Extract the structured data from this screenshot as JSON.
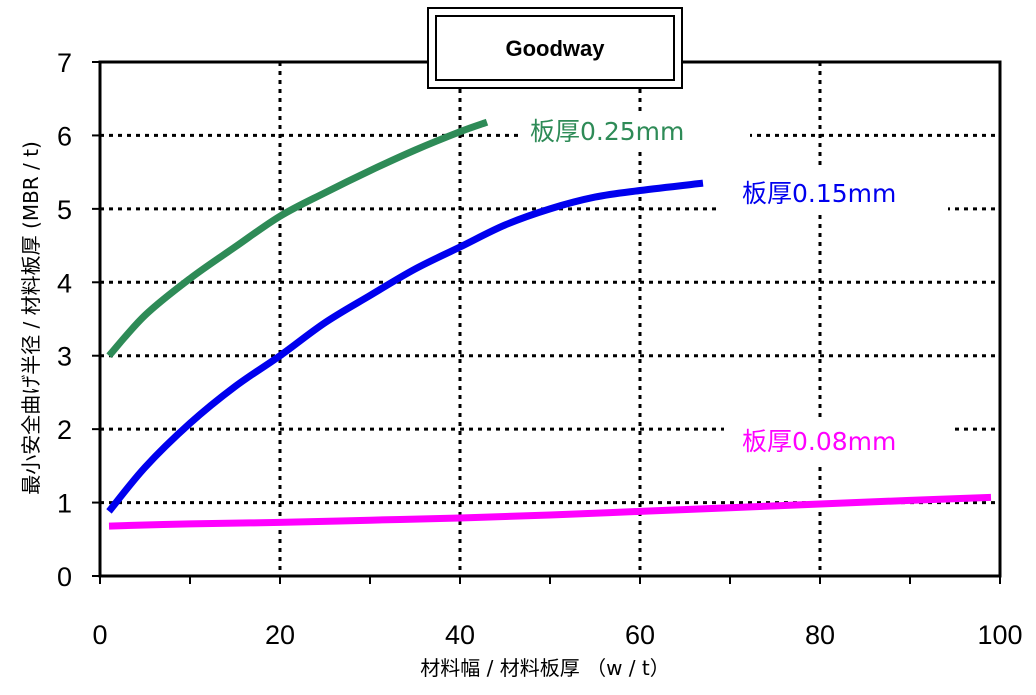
{
  "chart_data": {
    "type": "line",
    "title": "Goodway",
    "xlabel": "材料幅 / 材料板厚 （w / t）",
    "ylabel": "最小安全曲げ半径 / 材料板厚 (MBR / t)",
    "xlim": [
      0,
      100
    ],
    "ylim": [
      0,
      7
    ],
    "x_ticks": [
      "0",
      "20",
      "40",
      "60",
      "80",
      "100"
    ],
    "y_ticks": [
      "0",
      "1",
      "2",
      "3",
      "4",
      "5",
      "6",
      "7"
    ],
    "grid": true,
    "series": [
      {
        "name": "板厚0.25mm",
        "color": "#2e8b57",
        "x": [
          1,
          5,
          10,
          15,
          20,
          25,
          30,
          35,
          40,
          43
        ],
        "y": [
          3.0,
          3.55,
          4.05,
          4.48,
          4.9,
          5.22,
          5.52,
          5.8,
          6.05,
          6.18
        ]
      },
      {
        "name": "板厚0.15mm",
        "color": "#0000ee",
        "x": [
          1,
          5,
          10,
          15,
          20,
          25,
          30,
          35,
          40,
          45,
          50,
          55,
          60,
          67
        ],
        "y": [
          0.88,
          1.48,
          2.08,
          2.58,
          3.0,
          3.45,
          3.82,
          4.18,
          4.48,
          4.78,
          5.0,
          5.16,
          5.25,
          5.35
        ]
      },
      {
        "name": "板厚0.08mm",
        "color": "#ff00ff",
        "x": [
          1,
          10,
          20,
          30,
          40,
          50,
          60,
          70,
          80,
          90,
          99
        ],
        "y": [
          0.68,
          0.71,
          0.73,
          0.76,
          0.79,
          0.83,
          0.88,
          0.93,
          0.98,
          1.03,
          1.07
        ]
      }
    ]
  }
}
